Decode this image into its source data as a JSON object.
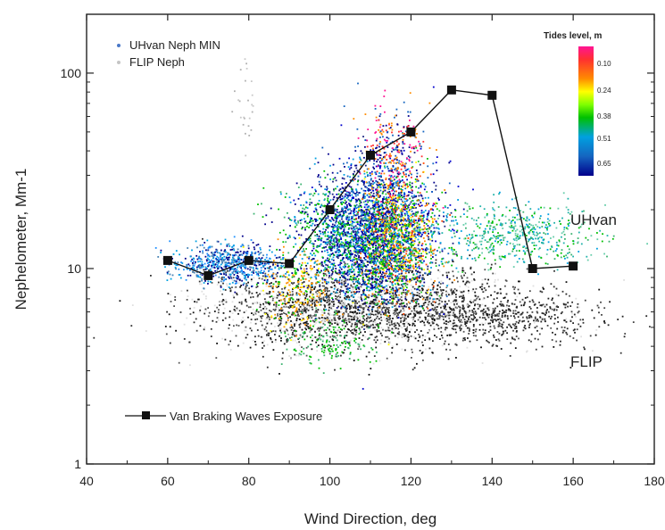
{
  "chart_data": {
    "type": "scatter",
    "xlabel": "Wind Direction, deg",
    "ylabel": "Nephelometer, Mm-1",
    "xlim": [
      40,
      180
    ],
    "ylim": [
      1,
      200
    ],
    "y_scale": "log",
    "x_ticks": [
      "40",
      "60",
      "80",
      "100",
      "120",
      "140",
      "160",
      "180"
    ],
    "y_ticks": [
      {
        "value": 1,
        "label": "1"
      },
      {
        "value": 10,
        "label": "10"
      },
      {
        "value": 100,
        "label": "100"
      }
    ],
    "grid": false,
    "legend": {
      "placement": "top-left",
      "entries": [
        {
          "label": "UHvan Neph MIN",
          "color": "#4a78c8"
        },
        {
          "label": "FLIP Neph",
          "color": "#c5c5c5"
        }
      ]
    },
    "colorbar": {
      "title": "Tides level, m",
      "labels": [
        "0.10",
        "0.24",
        "0.38",
        "0.51",
        "0.65"
      ],
      "colors": [
        "#ff1493",
        "#ffff00",
        "#00c000",
        "#00a0e0",
        "#00008b"
      ]
    },
    "annotations": [
      "UHvan",
      "FLIP"
    ],
    "series": [
      {
        "name": "Van Braking Waves Exposure",
        "style": "line-square",
        "color": "#000000",
        "x": [
          60,
          70,
          80,
          90,
          100,
          110,
          120,
          130,
          140,
          150,
          160
        ],
        "y": [
          11,
          9.2,
          11,
          10.6,
          20,
          38,
          50,
          82,
          77,
          10,
          10.3
        ]
      },
      {
        "name": "UHvan Neph MIN",
        "style": "cloud",
        "clusters": [
          {
            "cx": 112,
            "cy": 16,
            "sx": 7,
            "sdec": 0.17,
            "n": 2200,
            "colors": [
              "#00008b",
              "#1a237e",
              "#0000cd",
              "#1565c0",
              "#00a0e0"
            ]
          },
          {
            "cx": 116,
            "cy": 14,
            "sx": 5,
            "sdec": 0.16,
            "n": 900,
            "colors": [
              "#ffff00",
              "#ff8c00",
              "#32cd32",
              "#00c000",
              "#ff4500"
            ]
          },
          {
            "cx": 106,
            "cy": 12,
            "sx": 6,
            "sdec": 0.12,
            "n": 500,
            "colors": [
              "#00a0e0",
              "#00008b",
              "#00c000"
            ]
          },
          {
            "cx": 115,
            "cy": 36,
            "sx": 4,
            "sdec": 0.14,
            "n": 320,
            "colors": [
              "#ff1493",
              "#ff3030",
              "#ff8c00",
              "#00008b",
              "#1565c0"
            ]
          },
          {
            "cx": 75,
            "cy": 10.7,
            "sx": 7,
            "sdec": 0.05,
            "n": 650,
            "colors": [
              "#00a0e0",
              "#1e90ff",
              "#4682b4",
              "#00008b"
            ]
          },
          {
            "cx": 92,
            "cy": 8,
            "sx": 4,
            "sdec": 0.1,
            "n": 220,
            "colors": [
              "#ff8c00",
              "#ffa500",
              "#ffff00",
              "#00c000"
            ]
          },
          {
            "cx": 98,
            "cy": 17,
            "sx": 6,
            "sdec": 0.12,
            "n": 350,
            "colors": [
              "#00c000",
              "#3cb371",
              "#00a0e0",
              "#00008b"
            ]
          },
          {
            "cx": 145,
            "cy": 15,
            "sx": 10,
            "sdec": 0.08,
            "n": 550,
            "colors": [
              "#3cb371",
              "#66cdaa",
              "#00c000",
              "#20b2aa",
              "#00a0e0"
            ]
          },
          {
            "cx": 100,
            "cy": 4.3,
            "sx": 5,
            "sdec": 0.06,
            "n": 150,
            "colors": [
              "#00c000",
              "#3cb371"
            ]
          }
        ]
      },
      {
        "name": "FLIP Neph",
        "style": "cloud",
        "clusters": [
          {
            "cx": 108,
            "cy": 6.3,
            "sx": 20,
            "sdec": 0.1,
            "n": 2600,
            "colors": [
              "#111111",
              "#333333",
              "#555555",
              "#e0e0e0"
            ]
          },
          {
            "cx": 145,
            "cy": 5.5,
            "sx": 12,
            "sdec": 0.06,
            "n": 350,
            "colors": [
              "#222222",
              "#444444"
            ]
          },
          {
            "cx": 79,
            "cy": 70,
            "sx": 1.5,
            "sdec": 0.12,
            "n": 25,
            "colors": [
              "#c8c8c8",
              "#b0b0b0"
            ]
          }
        ]
      }
    ]
  }
}
